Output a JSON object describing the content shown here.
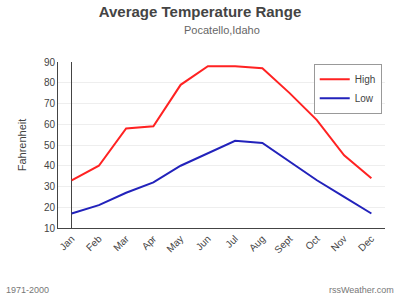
{
  "chart_data": {
    "type": "line",
    "title": "Average Temperature Range",
    "subtitle": "Pocatello,Idaho",
    "categories": [
      "Jan",
      "Feb",
      "Mar",
      "Apr",
      "May",
      "Jun",
      "Jul",
      "Aug",
      "Sept",
      "Oct",
      "Nov",
      "Dec"
    ],
    "series": [
      {
        "name": "High",
        "color": "#ff2222",
        "values": [
          33,
          40,
          58,
          59,
          79,
          88,
          88,
          87,
          75,
          62,
          45,
          34
        ]
      },
      {
        "name": "Low",
        "color": "#2222bb",
        "values": [
          17,
          21,
          27,
          32,
          40,
          46,
          52,
          51,
          42,
          33,
          25,
          17
        ]
      }
    ],
    "y_label": "Fahrenheit",
    "ylim": [
      10,
      90
    ],
    "yticks": [
      10,
      20,
      30,
      40,
      50,
      60,
      70,
      80,
      90
    ],
    "grid": true,
    "legend": "upper right",
    "annotations": [
      "1971-2000",
      "rssWeather.com"
    ]
  }
}
